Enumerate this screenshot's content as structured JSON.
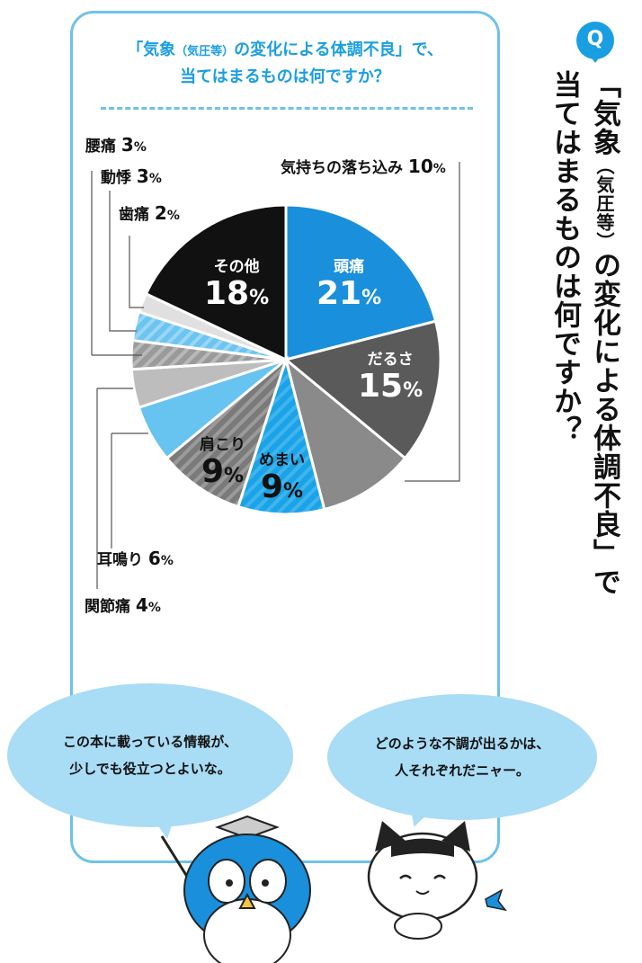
{
  "question": {
    "badge": "Q",
    "part1": "「気象",
    "part2": "（気圧等）",
    "part3": "の変化による体調不良」で",
    "part4": "当てはまるものは何ですか？"
  },
  "card_title": {
    "part1": "「気象",
    "part2": "（気圧等）",
    "part3": "の変化による体調不良」で、",
    "part4": "当てはまるものは何ですか？"
  },
  "bubbles": {
    "owl_line1": "この本に載っている情報が、",
    "owl_line2": "少しでも役立つとよいな。",
    "cat_line1": "どのような不調が出るかは、",
    "cat_line2": "人それぞれだニャー。"
  },
  "percent_sign": "%",
  "chart_data": {
    "type": "pie",
    "start": "12 o'clock, clockwise",
    "slices": [
      {
        "label": "頭痛",
        "value": 21,
        "color": "#1a8fdc",
        "pattern": "solid"
      },
      {
        "label": "だるさ",
        "value": 15,
        "color": "#5a5a5a",
        "pattern": "solid"
      },
      {
        "label": "気持ちの落ち込み",
        "value": 10,
        "color": "#8a8a8a",
        "pattern": "solid"
      },
      {
        "label": "めまい",
        "value": 9,
        "color": "#1aa3e8",
        "pattern": "stripes"
      },
      {
        "label": "肩こり",
        "value": 9,
        "color": "#8a8a8a",
        "pattern": "stripes"
      },
      {
        "label": "耳鳴り",
        "value": 6,
        "color": "#67c3f0",
        "pattern": "solid"
      },
      {
        "label": "関節痛",
        "value": 4,
        "color": "#bdbdbd",
        "pattern": "solid"
      },
      {
        "label": "腰痛",
        "value": 3,
        "color": "#a8a8a8",
        "pattern": "stripes"
      },
      {
        "label": "動悸",
        "value": 3,
        "color": "#7fcdf3",
        "pattern": "stripes"
      },
      {
        "label": "歯痛",
        "value": 2,
        "color": "#e0e0e0",
        "pattern": "solid"
      },
      {
        "label": "その他",
        "value": 18,
        "color": "#111111",
        "pattern": "solid"
      }
    ]
  }
}
